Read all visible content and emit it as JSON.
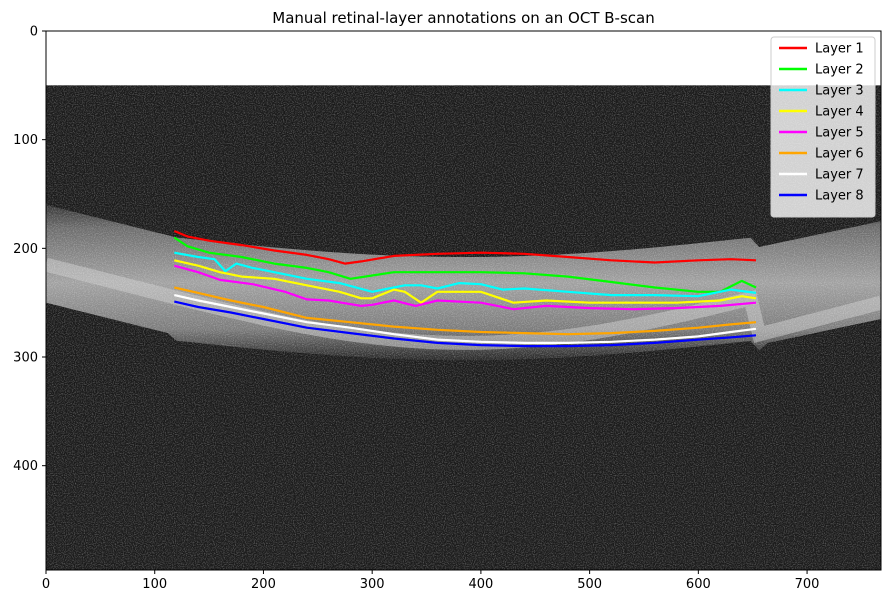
{
  "chart_data": {
    "type": "line",
    "title": "Manual retinal-layer annotations on an OCT B-scan",
    "xlabel": "",
    "ylabel": "",
    "xlim": [
      0,
      768
    ],
    "ylim": [
      496,
      0
    ],
    "y_inverted": true,
    "x_ticks": [
      0,
      100,
      200,
      300,
      400,
      500,
      600,
      700
    ],
    "y_ticks": [
      0,
      100,
      200,
      300,
      400
    ],
    "grid": false,
    "legend_position": "top-right",
    "background": "grayscale OCT B-scan image",
    "series": [
      {
        "name": "Layer 1",
        "color": "#ff0000",
        "x": [
          118,
          130,
          150,
          180,
          210,
          240,
          260,
          275,
          290,
          320,
          360,
          400,
          440,
          480,
          520,
          560,
          600,
          630,
          653
        ],
        "y": [
          184,
          189,
          193,
          197,
          202,
          206,
          210,
          214,
          212,
          207,
          205,
          204,
          205,
          208,
          211,
          213,
          211,
          210,
          211
        ]
      },
      {
        "name": "Layer 2",
        "color": "#00ff00",
        "x": [
          118,
          130,
          150,
          180,
          210,
          240,
          260,
          280,
          300,
          320,
          360,
          400,
          440,
          480,
          520,
          560,
          600,
          620,
          640,
          653
        ],
        "y": [
          190,
          198,
          204,
          208,
          214,
          218,
          222,
          228,
          225,
          222,
          222,
          222,
          223,
          226,
          231,
          236,
          240,
          240,
          230,
          236
        ]
      },
      {
        "name": "Layer 3",
        "color": "#00ffff",
        "x": [
          118,
          140,
          155,
          165,
          175,
          190,
          210,
          240,
          270,
          300,
          330,
          345,
          360,
          380,
          400,
          420,
          440,
          480,
          520,
          560,
          600,
          630,
          653
        ],
        "y": [
          204,
          208,
          210,
          221,
          214,
          218,
          222,
          228,
          232,
          240,
          234,
          234,
          237,
          232,
          233,
          238,
          237,
          240,
          243,
          243,
          244,
          238,
          241
        ]
      },
      {
        "name": "Layer 4",
        "color": "#ffff00",
        "x": [
          118,
          140,
          160,
          180,
          210,
          240,
          270,
          290,
          300,
          320,
          330,
          345,
          360,
          400,
          430,
          460,
          500,
          540,
          580,
          620,
          640,
          653
        ],
        "y": [
          211,
          216,
          222,
          226,
          228,
          234,
          240,
          246,
          246,
          238,
          240,
          250,
          240,
          240,
          250,
          248,
          250,
          250,
          250,
          248,
          244,
          246
        ]
      },
      {
        "name": "Layer 5",
        "color": "#ff00ff",
        "x": [
          118,
          140,
          160,
          190,
          220,
          240,
          260,
          290,
          300,
          320,
          340,
          360,
          400,
          430,
          460,
          500,
          540,
          580,
          620,
          653
        ],
        "y": [
          216,
          222,
          229,
          233,
          240,
          247,
          248,
          253,
          252,
          248,
          253,
          248,
          250,
          256,
          253,
          255,
          256,
          255,
          253,
          250
        ]
      },
      {
        "name": "Layer 6",
        "color": "#ffa500",
        "x": [
          118,
          140,
          170,
          200,
          240,
          280,
          320,
          360,
          400,
          440,
          480,
          520,
          560,
          600,
          630,
          653
        ],
        "y": [
          236,
          241,
          248,
          254,
          264,
          268,
          272,
          275,
          277,
          278,
          279,
          278,
          276,
          273,
          270,
          268
        ]
      },
      {
        "name": "Layer 7",
        "color": "#ffffff",
        "x": [
          118,
          140,
          170,
          200,
          240,
          280,
          320,
          360,
          400,
          440,
          480,
          520,
          560,
          600,
          630,
          653
        ],
        "y": [
          243,
          248,
          254,
          260,
          268,
          273,
          279,
          284,
          286,
          287,
          287,
          286,
          284,
          281,
          277,
          274
        ]
      },
      {
        "name": "Layer 8",
        "color": "#0000ff",
        "x": [
          118,
          140,
          170,
          200,
          240,
          280,
          320,
          360,
          400,
          440,
          480,
          520,
          560,
          600,
          630,
          653
        ],
        "y": [
          249,
          254,
          259,
          265,
          273,
          278,
          283,
          287,
          289,
          290,
          290,
          289,
          287,
          284,
          282,
          280
        ]
      }
    ]
  }
}
